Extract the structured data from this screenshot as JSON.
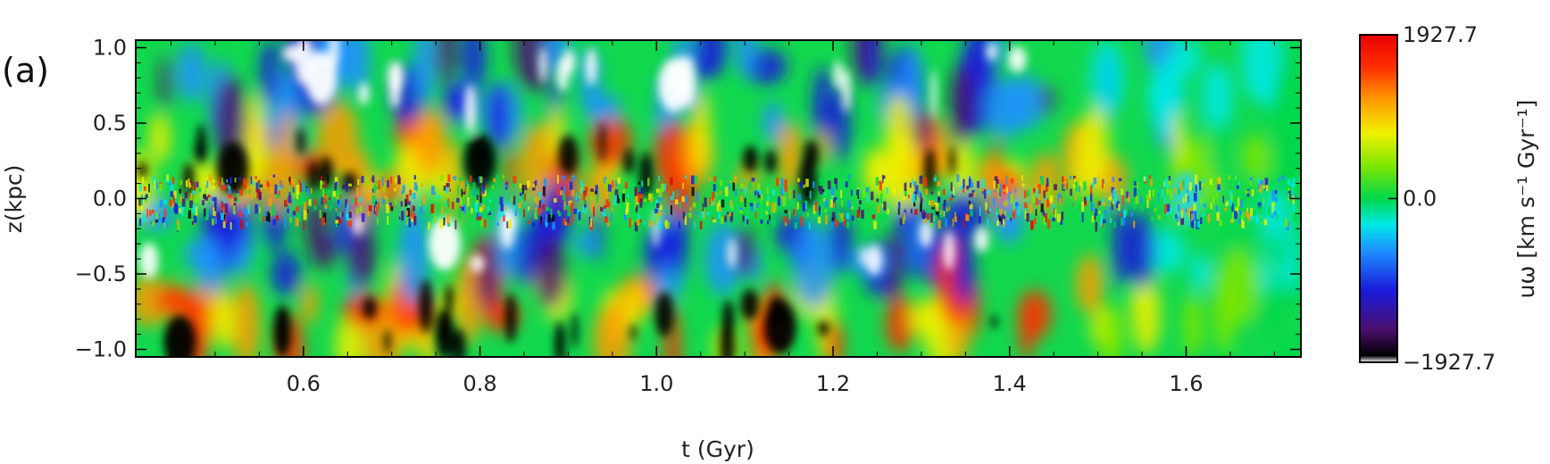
{
  "panel_label": "(a)",
  "chart_data": {
    "type": "heatmap",
    "xlabel": "t (Gyr)",
    "ylabel": "z(kpc)",
    "xlim": [
      0.41,
      1.73
    ],
    "ylim": [
      -1.05,
      1.05
    ],
    "x_ticks": [
      0.6,
      0.8,
      1.0,
      1.2,
      1.4,
      1.6
    ],
    "x_tick_labels": [
      "0.6",
      "0.8",
      "1.0",
      "1.2",
      "1.4",
      "1.6"
    ],
    "y_ticks": [
      1.0,
      0.5,
      0.0,
      -0.5,
      -1.0
    ],
    "y_tick_labels": [
      "1.0",
      "0.5",
      "0.0",
      "−0.5",
      "−1.0"
    ],
    "colorbar": {
      "min": -1927.7,
      "max": 1927.7,
      "tick_values": [
        1927.7,
        0.0,
        -1927.7
      ],
      "tick_labels": [
        "1927.7",
        "0.0",
        "−1927.7"
      ],
      "label": "uω [km s⁻¹ Gyr⁻¹]",
      "colormap": [
        "#ffffff",
        "#000000",
        "#4a0f6e",
        "#1a1adc",
        "#1e90ff",
        "#00e8e8",
        "#00d84a",
        "#7ee600",
        "#f0f000",
        "#ff9c00",
        "#ff3000",
        "#e80000"
      ]
    },
    "features": [
      {
        "t": 0.46,
        "z": -0.95,
        "sign": "negative_extreme"
      },
      {
        "t": 0.52,
        "z": 0.2,
        "sign": "negative_extreme"
      },
      {
        "t": 0.8,
        "z": 0.25,
        "sign": "negative_extreme"
      },
      {
        "t": 0.76,
        "z": -0.3,
        "sign": "positive_extreme"
      },
      {
        "t": 1.02,
        "z": 0.75,
        "sign": "positive_extreme"
      },
      {
        "t": 1.14,
        "z": -0.85,
        "sign": "negative_extreme"
      },
      {
        "t": 0.62,
        "z": 0.8,
        "sign": "positive_extreme"
      },
      {
        "t": 1.6,
        "z": 0.0,
        "sign": "near_zero"
      }
    ]
  }
}
